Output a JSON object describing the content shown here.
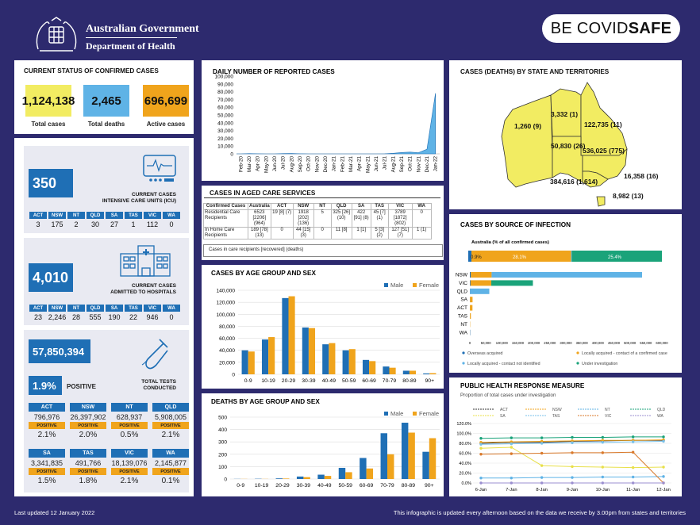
{
  "header": {
    "org_line1": "Australian Government",
    "org_line2": "Department of Health",
    "app_prefix": "BE COVID",
    "app_suffix": "SAFE"
  },
  "status": {
    "title": "CURRENT STATUS OF CONFIRMED CASES",
    "total_cases": "1,124,138",
    "total_cases_label": "Total cases",
    "total_deaths": "2,465",
    "total_deaths_label": "Total deaths",
    "active_cases": "696,699",
    "active_cases_label": "Active cases",
    "colors": {
      "cases": "#f2ec62",
      "deaths": "#5fb3e6",
      "active": "#f0a41c"
    }
  },
  "icu": {
    "value": "350",
    "label": "CURRENT CASES\nINTENSIVE CARE UNITS (ICU)",
    "states": [
      "ACT",
      "NSW",
      "NT",
      "QLD",
      "SA",
      "TAS",
      "VIC",
      "WA"
    ],
    "values": [
      "3",
      "175",
      "2",
      "30",
      "27",
      "1",
      "112",
      "0"
    ]
  },
  "hospital": {
    "value": "4,010",
    "label": "CURRENT CASES\nADMITTED TO HOSPITALS",
    "states": [
      "ACT",
      "NSW",
      "NT",
      "QLD",
      "SA",
      "TAS",
      "VIC",
      "WA"
    ],
    "values": [
      "23",
      "2,246",
      "28",
      "555",
      "190",
      "22",
      "946",
      "0"
    ]
  },
  "tests": {
    "value": "57,850,394",
    "positive_rate": "1.9%",
    "positive_label": "POSITIVE",
    "label": "TOTAL TESTS\nCONDUCTED",
    "positive_tag": "POSITIVE",
    "row1": [
      {
        "state": "ACT",
        "tests": "796,976",
        "rate": "2.1%"
      },
      {
        "state": "NSW",
        "tests": "26,397,902",
        "rate": "2.0%"
      },
      {
        "state": "NT",
        "tests": "628,937",
        "rate": "0.5%"
      },
      {
        "state": "QLD",
        "tests": "5,908,005",
        "rate": "2.1%"
      }
    ],
    "row2": [
      {
        "state": "SA",
        "tests": "3,341,835",
        "rate": "1.5%"
      },
      {
        "state": "TAS",
        "tests": "491,766",
        "rate": "1.8%"
      },
      {
        "state": "VIC",
        "tests": "18,139,076",
        "rate": "2.1%"
      },
      {
        "state": "WA",
        "tests": "2,145,877",
        "rate": "0.1%"
      }
    ]
  },
  "aged_care": {
    "title": "CASES IN AGED CARE SERVICES",
    "headers": [
      "Confirmed Cases",
      "Australia",
      "ACT",
      "NSW",
      "NT",
      "QLD",
      "SA",
      "TAS",
      "VIC",
      "WA"
    ],
    "rows": [
      [
        "Residential Care Recipients",
        "6523 [2206] (964)",
        "19 [8] (7)",
        "1918 [202] (136)",
        "5",
        "325 [26] (10)",
        "422 [91] (8)",
        "45 [7] (1)",
        "3789 [1872] (802)",
        "0"
      ],
      [
        "In Home Care Recipients",
        "189 [78] (13)",
        "0",
        "44 [15] (3)",
        "0",
        "11 [8]",
        "1 [1]",
        "5 [3] (2)",
        "127 [51] (7)",
        "1 (1)"
      ]
    ],
    "note": "Cases in care recipients [recovered] (deaths)"
  },
  "state_map": {
    "title": "CASES (DEATHS) BY STATE AND TERRITORIES",
    "labels": {
      "WA": "1,260 (9)",
      "NT": "3,332 (1)",
      "QLD": "122,735 (11)",
      "SA": "50,830 (26)",
      "NSW": "536,025 (775)",
      "ACT": "16,358 (16)",
      "VIC": "384,616 (1,614)",
      "TAS": "8,982 (13)"
    }
  },
  "source": {
    "title": "CASES BY SOURCE OF INFECTION",
    "subtitle": "Australia (% of all confirmed cases)",
    "legend": [
      "Overseas acquired",
      "Locally acquired - contact of a confirmed case",
      "Locally acquired - contact not identified",
      "Under investigation"
    ],
    "colors": [
      "#1f6fb5",
      "#f0a41c",
      "#5fb3e6",
      "#1aa37a"
    ]
  },
  "measure": {
    "title": "PUBLIC HEALTH RESPONSE MEASURE",
    "subtitle": "Proportion of total cases under investigation"
  },
  "footer": {
    "left": "Last updated 12 January 2022",
    "right": "This infographic is updated every afternoon based on the data we receive by 3.00pm from states and territories"
  },
  "chart_data": [
    {
      "type": "area",
      "title": "DAILY NUMBER OF REPORTED CASES",
      "x": [
        "Feb-20",
        "Mar-20",
        "Apr-20",
        "May-20",
        "Jun-20",
        "Jul-20",
        "Aug-20",
        "Sep-20",
        "Oct-20",
        "Nov-20",
        "Dec-20",
        "Jan-21",
        "Feb-21",
        "Mar-21",
        "Apr-21",
        "May-21",
        "Jun-21",
        "Jul-21",
        "Aug-21",
        "Sep-21",
        "Oct-21",
        "Nov-21",
        "Dec-21",
        "Jan-22"
      ],
      "values": [
        0,
        300,
        150,
        20,
        15,
        300,
        550,
        100,
        15,
        10,
        20,
        20,
        10,
        10,
        15,
        15,
        20,
        150,
        700,
        1700,
        2200,
        1500,
        6000,
        78000
      ],
      "ylim": [
        0,
        100000
      ],
      "yticks": [
        0,
        10000,
        20000,
        30000,
        40000,
        50000,
        60000,
        70000,
        80000,
        90000,
        100000
      ],
      "ytick_labels": [
        "0",
        "10,000",
        "20,000",
        "30,000",
        "40,000",
        "50,000",
        "60,000",
        "70,000",
        "80,000",
        "90,000",
        "100,000"
      ],
      "color": "#5fb3e6"
    },
    {
      "type": "bar",
      "title": "CASES BY AGE GROUP AND SEX",
      "categories": [
        "0-9",
        "10-19",
        "20-29",
        "30-39",
        "40-49",
        "50-59",
        "60-69",
        "70-79",
        "80-89",
        "90+"
      ],
      "series": [
        {
          "name": "Male",
          "values": [
            40000,
            58000,
            127000,
            78000,
            50000,
            40000,
            24000,
            13000,
            6000,
            1500
          ],
          "color": "#1f6fb5"
        },
        {
          "name": "Female",
          "values": [
            38000,
            62000,
            130000,
            77000,
            52000,
            42000,
            22000,
            11000,
            6000,
            2000
          ],
          "color": "#f0a41c"
        }
      ],
      "ylim": [
        0,
        140000
      ],
      "yticks": [
        0,
        20000,
        40000,
        60000,
        80000,
        100000,
        120000,
        140000
      ],
      "ytick_labels": [
        "0",
        "20,000",
        "40,000",
        "60,000",
        "80,000",
        "100,000",
        "120,000",
        "140,000"
      ],
      "legend": "top-right"
    },
    {
      "type": "bar",
      "title": "DEATHS BY AGE GROUP AND SEX",
      "categories": [
        "0-9",
        "10-19",
        "20-29",
        "30-39",
        "40-49",
        "50-59",
        "60-69",
        "70-79",
        "80-89",
        "90+"
      ],
      "series": [
        {
          "name": "Male",
          "values": [
            1,
            2,
            5,
            20,
            35,
            90,
            170,
            370,
            455,
            220
          ],
          "color": "#1f6fb5"
        },
        {
          "name": "Female",
          "values": [
            1,
            1,
            4,
            15,
            25,
            55,
            85,
            200,
            375,
            330
          ],
          "color": "#f0a41c"
        }
      ],
      "ylim": [
        0,
        500
      ],
      "yticks": [
        0,
        100,
        200,
        300,
        400,
        500
      ],
      "ytick_labels": [
        "0",
        "100",
        "200",
        "300",
        "400",
        "500"
      ],
      "legend": "top-right"
    },
    {
      "type": "bar",
      "title": "Australia (% of all confirmed cases)",
      "orientation": "horizontal-stacked",
      "categories": [
        "Australia"
      ],
      "series": [
        {
          "name": "Overseas acquired",
          "values": [
            0.9
          ],
          "color": "#1f6fb5"
        },
        {
          "name": "Locally acquired - contact of a confirmed case",
          "values": [
            28.1
          ],
          "color": "#f0a41c"
        },
        {
          "name": "Locally acquired - contact not identified",
          "values": [
            0.2
          ],
          "color": "#5fb3e6"
        },
        {
          "name": "Under investigation",
          "values": [
            25.4
          ],
          "color": "#1aa37a"
        }
      ],
      "labels": [
        "0.9%",
        "28.1%",
        "25.4%"
      ]
    },
    {
      "type": "bar",
      "orientation": "horizontal-stacked",
      "categories": [
        "NSW",
        "VIC",
        "QLD",
        "SA",
        "ACT",
        "TAS",
        "NT",
        "WA"
      ],
      "series": [
        {
          "name": "Overseas acquired",
          "values": [
            3000,
            2000,
            800,
            500,
            200,
            200,
            100,
            900
          ],
          "color": "#1f6fb5"
        },
        {
          "name": "Locally acquired - contact of a confirmed case",
          "values": [
            65000,
            65000,
            0,
            8000,
            8000,
            3000,
            800,
            100
          ],
          "color": "#f0a41c"
        },
        {
          "name": "Locally acquired - contact not identified",
          "values": [
            470000,
            0,
            60000,
            0,
            0,
            0,
            0,
            0
          ],
          "color": "#5fb3e6"
        },
        {
          "name": "Under investigation",
          "values": [
            0,
            130000,
            0,
            0,
            0,
            0,
            0,
            0
          ],
          "color": "#1aa37a"
        }
      ],
      "xlim": [
        0,
        600000
      ],
      "xticks": [
        0,
        50000,
        100000,
        150000,
        200000,
        250000,
        300000,
        350000,
        400000,
        450000,
        500000,
        550000,
        600000
      ],
      "xtick_labels": [
        "0",
        "50,000",
        "100,000",
        "150,000",
        "200,000",
        "250,000",
        "300,000",
        "350,000",
        "400,000",
        "450,000",
        "500,000",
        "550,000",
        "600,000"
      ],
      "legend": "bottom"
    },
    {
      "type": "line",
      "title": "PUBLIC HEALTH RESPONSE MEASURE",
      "x": [
        "6-Jan",
        "7-Jan",
        "8-Jan",
        "9-Jan",
        "10-Jan",
        "11-Jan",
        "12-Jan"
      ],
      "series": [
        {
          "name": "ACT",
          "values": [
            80,
            82,
            82,
            84,
            85,
            86,
            86
          ],
          "color": "#333333"
        },
        {
          "name": "NSW",
          "values": [
            82,
            83,
            84,
            85,
            86,
            86,
            87
          ],
          "color": "#f0a41c"
        },
        {
          "name": "NT",
          "values": [
            10,
            10,
            11,
            11,
            12,
            12,
            13
          ],
          "color": "#5fb3e6"
        },
        {
          "name": "QLD",
          "values": [
            90,
            91,
            91,
            92,
            92,
            93,
            93
          ],
          "color": "#1aa37a"
        },
        {
          "name": "SA",
          "values": [
            70,
            72,
            35,
            33,
            32,
            31,
            32
          ],
          "color": "#e8e04a"
        },
        {
          "name": "TAS",
          "values": [
            78,
            79,
            80,
            81,
            82,
            83,
            84
          ],
          "color": "#79c0e8"
        },
        {
          "name": "VIC",
          "values": [
            58,
            59,
            60,
            61,
            61,
            62,
            0
          ],
          "color": "#d9792b"
        },
        {
          "name": "WA",
          "values": [
            0,
            0,
            0,
            0,
            0,
            0,
            0
          ],
          "color": "#9b8fd0"
        }
      ],
      "ylim": [
        0,
        120
      ],
      "yticks": [
        0,
        20,
        40,
        60,
        80,
        100,
        120
      ],
      "ytick_labels": [
        "0.0%",
        "20.0%",
        "40.0%",
        "60.0%",
        "80.0%",
        "100.0%",
        "120.0%"
      ],
      "legend": "top"
    }
  ]
}
